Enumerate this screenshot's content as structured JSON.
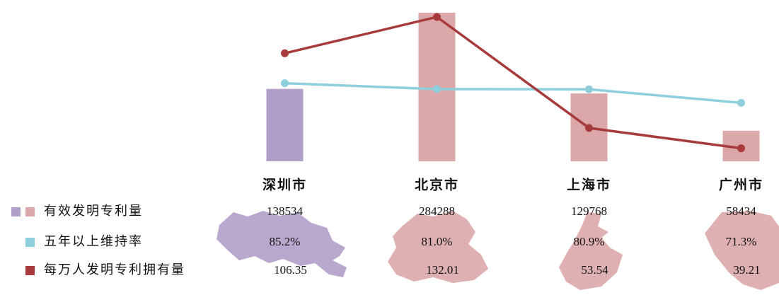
{
  "chart_data": {
    "type": "bar",
    "categories": [
      "深圳市",
      "北京市",
      "上海市",
      "广州市"
    ],
    "ylim": [
      0,
      284288
    ],
    "y2lim": [
      30,
      135
    ],
    "series": [
      {
        "name": "有效发明专利量",
        "type": "bar",
        "colors": [
          "#b09fc9",
          "#dba7a9",
          "#dba7a9",
          "#dba7a9"
        ],
        "values": [
          138534,
          284288,
          129768,
          58434
        ]
      },
      {
        "name": "五年以上维持率",
        "type": "line",
        "axis": "y2",
        "color": "#8fcfdd",
        "values": [
          85.2,
          81.0,
          80.9,
          71.3
        ],
        "value_labels": [
          "85.2%",
          "81.0%",
          "80.9%",
          "71.3%"
        ]
      },
      {
        "name": "每万人发明专利拥有量",
        "type": "line",
        "axis": "y2",
        "color": "#a73b3b",
        "values": [
          106.35,
          132.01,
          53.54,
          39.21
        ],
        "value_labels": [
          "106.35",
          "132.01",
          "53.54",
          "39.21"
        ]
      }
    ]
  }
}
